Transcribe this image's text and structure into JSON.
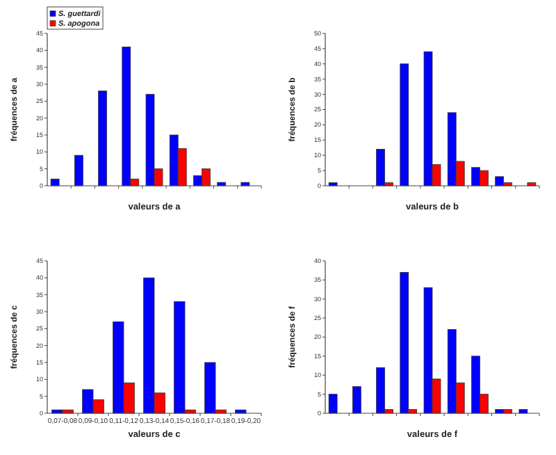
{
  "chart_data": [
    {
      "type": "bar",
      "xlabel": "valeurs de a",
      "ylabel": "fréquences de a",
      "categories": [
        null,
        null,
        null,
        null,
        null,
        null,
        null,
        null,
        null
      ],
      "ylim": [
        0,
        45
      ],
      "yticks": [
        0,
        5,
        10,
        15,
        20,
        25,
        30,
        35,
        40,
        45
      ],
      "legend": "top left",
      "series": [
        {
          "name": "S. guettardi",
          "color": "#0000ff",
          "values": [
            2,
            9,
            28,
            41,
            27,
            15,
            3,
            1,
            1
          ]
        },
        {
          "name": "S. apogona",
          "color": "#ff0000",
          "values": [
            0,
            0,
            0,
            2,
            5,
            11,
            5,
            0,
            0
          ]
        }
      ]
    },
    {
      "type": "bar",
      "xlabel": "valeurs de b",
      "ylabel": "fréquences de b",
      "categories": [
        null,
        null,
        null,
        null,
        null,
        null,
        null,
        null,
        null
      ],
      "ylim": [
        0,
        50
      ],
      "yticks": [
        0,
        5,
        10,
        15,
        20,
        25,
        30,
        35,
        40,
        45,
        50
      ],
      "series": [
        {
          "color": "#0000ff",
          "values": [
            1,
            0,
            12,
            40,
            44,
            24,
            6,
            3,
            0
          ]
        },
        {
          "color": "#ff0000",
          "values": [
            0,
            0,
            1,
            0,
            7,
            8,
            5,
            1,
            1
          ]
        }
      ]
    },
    {
      "type": "bar",
      "xlabel": "valeurs de c",
      "ylabel": "fréquences de c",
      "categories": [
        "0,07-0,08",
        "0,09-0,10",
        "0,11-0,12",
        "0,13-0,14",
        "0,15-0,16",
        "0,17-0,18",
        "0,19-0,20"
      ],
      "ylim": [
        0,
        45
      ],
      "yticks": [
        0,
        5,
        10,
        15,
        20,
        25,
        30,
        35,
        40,
        45
      ],
      "series": [
        {
          "color": "#0000ff",
          "values": [
            1,
            7,
            27,
            40,
            33,
            15,
            1
          ]
        },
        {
          "color": "#ff0000",
          "values": [
            1,
            4,
            9,
            6,
            1,
            1,
            0
          ]
        }
      ]
    },
    {
      "type": "bar",
      "xlabel": "valeurs de f",
      "ylabel": "fréquences de f",
      "categories": [
        null,
        null,
        null,
        null,
        null,
        null,
        null,
        null,
        null
      ],
      "ylim": [
        0,
        40
      ],
      "yticks": [
        0,
        5,
        10,
        15,
        20,
        25,
        30,
        35,
        40
      ],
      "series": [
        {
          "color": "#0000ff",
          "values": [
            5,
            7,
            12,
            37,
            33,
            22,
            15,
            1,
            1
          ]
        },
        {
          "color": "#ff0000",
          "values": [
            0,
            0,
            1,
            1,
            9,
            8,
            5,
            1,
            0
          ]
        }
      ]
    }
  ]
}
